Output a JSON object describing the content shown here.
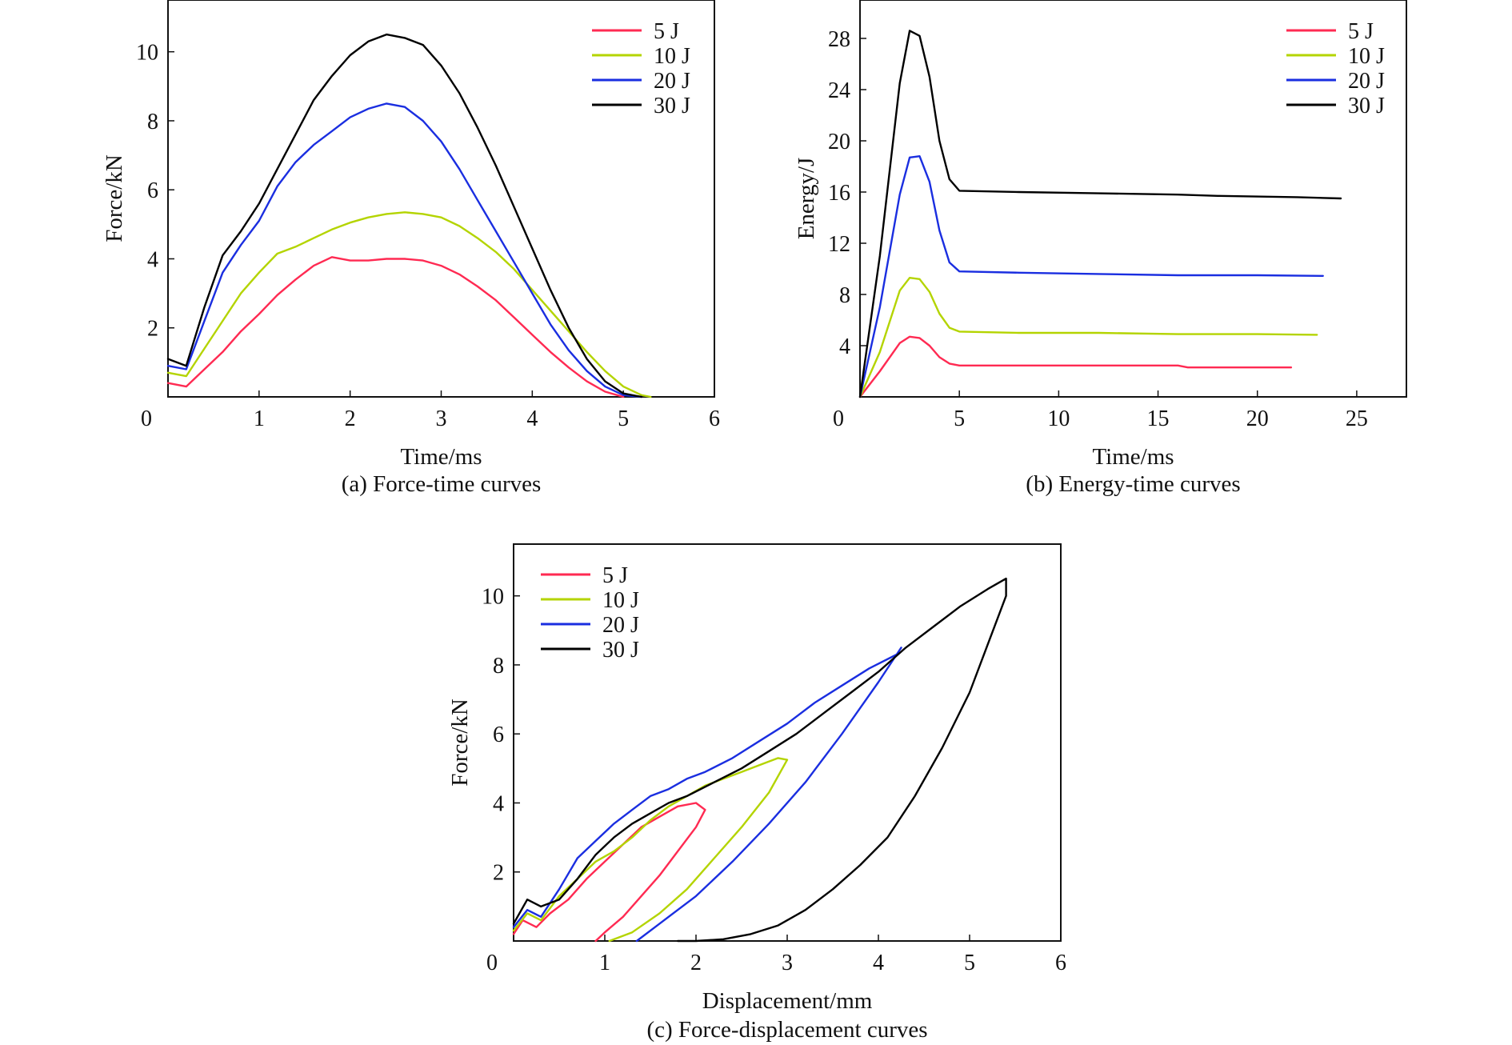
{
  "chart_data": [
    {
      "type": "line",
      "caption": "(a) Force-time curves",
      "xlabel": "Time/ms",
      "ylabel": "Force/kN",
      "xlim": [
        0,
        6
      ],
      "ylim": [
        0,
        11.5
      ],
      "xticks": [
        0,
        1,
        2,
        3,
        4,
        5,
        6
      ],
      "yticks": [
        2,
        4,
        6,
        8,
        10
      ],
      "legend_position": "top-right",
      "series": [
        {
          "name": "5 J",
          "color": "#ff2a52",
          "x": [
            0.0,
            0.2,
            0.4,
            0.6,
            0.8,
            1.0,
            1.2,
            1.4,
            1.6,
            1.8,
            2.0,
            2.2,
            2.4,
            2.6,
            2.8,
            3.0,
            3.2,
            3.4,
            3.6,
            3.8,
            4.0,
            4.2,
            4.4,
            4.6,
            4.8,
            5.0
          ],
          "y": [
            0.4,
            0.3,
            0.8,
            1.3,
            1.9,
            2.4,
            2.95,
            3.4,
            3.8,
            4.05,
            3.95,
            3.95,
            4.0,
            4.0,
            3.95,
            3.8,
            3.55,
            3.2,
            2.8,
            2.3,
            1.8,
            1.3,
            0.85,
            0.45,
            0.15,
            0.0
          ]
        },
        {
          "name": "10 J",
          "color": "#b4d400",
          "x": [
            0.0,
            0.2,
            0.4,
            0.6,
            0.8,
            1.0,
            1.2,
            1.4,
            1.6,
            1.8,
            2.0,
            2.2,
            2.4,
            2.6,
            2.8,
            3.0,
            3.2,
            3.4,
            3.6,
            3.8,
            4.0,
            4.2,
            4.4,
            4.6,
            4.8,
            5.0,
            5.2,
            5.3
          ],
          "y": [
            0.7,
            0.6,
            1.4,
            2.2,
            3.0,
            3.6,
            4.15,
            4.35,
            4.6,
            4.85,
            5.05,
            5.2,
            5.3,
            5.35,
            5.3,
            5.2,
            4.95,
            4.6,
            4.2,
            3.7,
            3.1,
            2.5,
            1.9,
            1.3,
            0.75,
            0.3,
            0.05,
            0.0
          ]
        },
        {
          "name": "20 J",
          "color": "#1a2ee0",
          "x": [
            0.0,
            0.2,
            0.4,
            0.6,
            0.8,
            1.0,
            1.2,
            1.4,
            1.6,
            1.8,
            2.0,
            2.2,
            2.4,
            2.6,
            2.8,
            3.0,
            3.2,
            3.4,
            3.6,
            3.8,
            4.0,
            4.2,
            4.4,
            4.6,
            4.8,
            5.0,
            5.2
          ],
          "y": [
            0.9,
            0.8,
            2.2,
            3.6,
            4.4,
            5.1,
            6.1,
            6.8,
            7.3,
            7.7,
            8.1,
            8.35,
            8.5,
            8.4,
            8.0,
            7.4,
            6.6,
            5.7,
            4.8,
            3.9,
            3.0,
            2.1,
            1.35,
            0.75,
            0.3,
            0.05,
            0.0
          ]
        },
        {
          "name": "30 J",
          "color": "#000000",
          "x": [
            0.0,
            0.2,
            0.4,
            0.6,
            0.8,
            1.0,
            1.2,
            1.4,
            1.6,
            1.8,
            2.0,
            2.2,
            2.4,
            2.6,
            2.8,
            3.0,
            3.2,
            3.4,
            3.6,
            3.8,
            4.0,
            4.2,
            4.4,
            4.6,
            4.8,
            5.0,
            5.2
          ],
          "y": [
            1.1,
            0.9,
            2.6,
            4.1,
            4.8,
            5.6,
            6.6,
            7.6,
            8.6,
            9.3,
            9.9,
            10.3,
            10.5,
            10.4,
            10.2,
            9.6,
            8.8,
            7.8,
            6.7,
            5.5,
            4.3,
            3.1,
            2.0,
            1.1,
            0.45,
            0.1,
            0.0
          ]
        }
      ]
    },
    {
      "type": "line",
      "caption": "(b) Energy-time curves",
      "xlabel": "Time/ms",
      "ylabel": "Energy/J",
      "xlim": [
        0,
        27.5
      ],
      "ylim": [
        0,
        31
      ],
      "xticks": [
        0,
        5,
        10,
        15,
        20,
        25
      ],
      "yticks": [
        4,
        8,
        12,
        16,
        20,
        24,
        28
      ],
      "legend_position": "top-right",
      "series": [
        {
          "name": "5 J",
          "color": "#ff2a52",
          "x": [
            0.0,
            1.0,
            2.0,
            2.5,
            3.0,
            3.5,
            4.0,
            4.5,
            5.0,
            8.0,
            12.0,
            16.0,
            16.5,
            20.0,
            21.7
          ],
          "y": [
            0.0,
            2.0,
            4.2,
            4.7,
            4.6,
            4.0,
            3.1,
            2.6,
            2.45,
            2.45,
            2.45,
            2.45,
            2.3,
            2.3,
            2.3
          ]
        },
        {
          "name": "10 J",
          "color": "#b4d400",
          "x": [
            0.0,
            1.0,
            2.0,
            2.5,
            3.0,
            3.5,
            4.0,
            4.5,
            5.0,
            8.0,
            12.0,
            16.0,
            20.0,
            23.0
          ],
          "y": [
            0.0,
            3.5,
            8.3,
            9.3,
            9.2,
            8.2,
            6.5,
            5.4,
            5.1,
            5.0,
            5.0,
            4.9,
            4.9,
            4.85
          ]
        },
        {
          "name": "20 J",
          "color": "#1a2ee0",
          "x": [
            0.0,
            1.0,
            2.0,
            2.5,
            3.0,
            3.5,
            4.0,
            4.5,
            5.0,
            8.0,
            12.0,
            16.0,
            20.0,
            23.3
          ],
          "y": [
            0.0,
            7.0,
            15.8,
            18.7,
            18.8,
            16.8,
            13.0,
            10.5,
            9.8,
            9.7,
            9.6,
            9.5,
            9.5,
            9.45
          ]
        },
        {
          "name": "30 J",
          "color": "#000000",
          "x": [
            0.0,
            1.0,
            2.0,
            2.5,
            3.0,
            3.5,
            4.0,
            4.5,
            5.0,
            8.0,
            12.0,
            16.0,
            18.0,
            22.0,
            24.2
          ],
          "y": [
            0.0,
            11.0,
            24.5,
            28.6,
            28.2,
            25.0,
            20.0,
            17.0,
            16.1,
            16.0,
            15.9,
            15.8,
            15.7,
            15.6,
            15.5
          ]
        }
      ]
    },
    {
      "type": "line",
      "caption": "(c) Force-displacement curves",
      "xlabel": "Displacement/mm",
      "ylabel": "Force/kN",
      "xlim": [
        0,
        6
      ],
      "ylim": [
        0,
        11.5
      ],
      "xticks": [
        0,
        1,
        2,
        3,
        4,
        5,
        6
      ],
      "yticks": [
        2,
        4,
        6,
        8,
        10
      ],
      "legend_position": "top-left",
      "series": [
        {
          "name": "5 J",
          "color": "#ff2a52",
          "x": [
            0.0,
            0.1,
            0.25,
            0.4,
            0.6,
            0.8,
            1.0,
            1.2,
            1.4,
            1.6,
            1.8,
            2.0,
            2.1,
            2.0,
            1.8,
            1.6,
            1.4,
            1.2,
            1.0,
            0.9
          ],
          "y": [
            0.2,
            0.6,
            0.4,
            0.8,
            1.2,
            1.8,
            2.3,
            2.8,
            3.3,
            3.6,
            3.9,
            4.0,
            3.8,
            3.3,
            2.6,
            1.9,
            1.3,
            0.7,
            0.25,
            0.0
          ]
        },
        {
          "name": "10 J",
          "color": "#b4d400",
          "x": [
            0.0,
            0.15,
            0.3,
            0.5,
            0.7,
            0.9,
            1.1,
            1.3,
            1.5,
            1.7,
            1.9,
            2.1,
            2.3,
            2.5,
            2.7,
            2.9,
            3.0,
            2.8,
            2.5,
            2.2,
            1.9,
            1.6,
            1.3,
            1.05
          ],
          "y": [
            0.3,
            0.8,
            0.6,
            1.3,
            1.8,
            2.3,
            2.6,
            3.0,
            3.5,
            3.9,
            4.2,
            4.5,
            4.7,
            4.9,
            5.1,
            5.3,
            5.25,
            4.3,
            3.3,
            2.4,
            1.5,
            0.8,
            0.25,
            0.0
          ]
        },
        {
          "name": "20 J",
          "color": "#1a2ee0",
          "x": [
            0.0,
            0.15,
            0.3,
            0.5,
            0.7,
            0.9,
            1.1,
            1.3,
            1.5,
            1.7,
            1.9,
            2.1,
            2.4,
            2.7,
            3.0,
            3.3,
            3.6,
            3.9,
            4.2,
            4.25,
            4.0,
            3.6,
            3.2,
            2.8,
            2.4,
            2.0,
            1.6,
            1.35
          ],
          "y": [
            0.4,
            0.9,
            0.7,
            1.5,
            2.4,
            2.9,
            3.4,
            3.8,
            4.2,
            4.4,
            4.7,
            4.9,
            5.3,
            5.8,
            6.3,
            6.9,
            7.4,
            7.9,
            8.3,
            8.5,
            7.5,
            6.0,
            4.6,
            3.4,
            2.3,
            1.3,
            0.5,
            0.0
          ]
        },
        {
          "name": "30 J",
          "color": "#000000",
          "x": [
            0.0,
            0.15,
            0.3,
            0.5,
            0.7,
            0.9,
            1.1,
            1.3,
            1.5,
            1.7,
            1.9,
            2.2,
            2.5,
            2.8,
            3.1,
            3.4,
            3.7,
            4.0,
            4.3,
            4.6,
            4.9,
            5.2,
            5.4,
            5.4,
            5.2,
            5.0,
            4.7,
            4.4,
            4.1,
            3.8,
            3.5,
            3.2,
            2.9,
            2.6,
            2.3,
            2.0,
            1.8
          ],
          "y": [
            0.5,
            1.2,
            1.0,
            1.2,
            1.8,
            2.5,
            3.0,
            3.4,
            3.7,
            4.0,
            4.2,
            4.6,
            5.0,
            5.5,
            6.0,
            6.6,
            7.2,
            7.8,
            8.5,
            9.1,
            9.7,
            10.2,
            10.5,
            10.0,
            8.6,
            7.2,
            5.6,
            4.2,
            3.0,
            2.2,
            1.5,
            0.9,
            0.45,
            0.2,
            0.05,
            0.0,
            0.0
          ]
        }
      ]
    }
  ]
}
